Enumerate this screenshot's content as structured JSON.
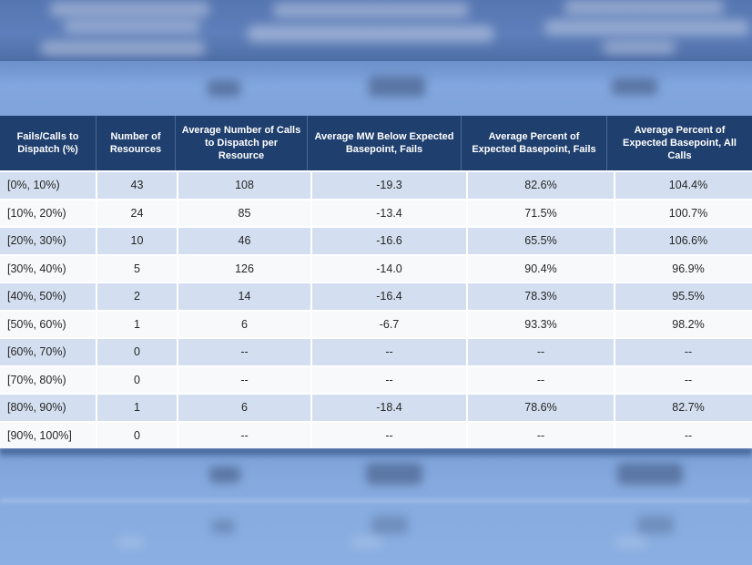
{
  "colors": {
    "header_bg": "#1f3f6e",
    "header_text": "#ffffff",
    "row_alt_bg": "#d3dff0",
    "row_bg": "#f8f9fb",
    "cell_text": "#262626",
    "grid_line": "#ffffff",
    "blur_top_bg": "#5d7eba",
    "blur_mid_bg": "#7fa3db",
    "blur_bottom_bg": "#86aadf"
  },
  "table": {
    "columns": [
      "Fails/Calls to Dispatch (%)",
      "Number of Resources",
      "Average Number of Calls to Dispatch per Resource",
      "Average MW Below Expected Basepoint, Fails",
      "Average Percent of Expected Basepoint, Fails",
      "Average Percent of Expected Basepoint, All Calls"
    ],
    "rows": [
      [
        "[0%, 10%)",
        "43",
        "108",
        "-19.3",
        "82.6%",
        "104.4%"
      ],
      [
        "[10%, 20%)",
        "24",
        "85",
        "-13.4",
        "71.5%",
        "100.7%"
      ],
      [
        "[20%, 30%)",
        "10",
        "46",
        "-16.6",
        "65.5%",
        "106.6%"
      ],
      [
        "[30%, 40%)",
        "5",
        "126",
        "-14.0",
        "90.4%",
        "96.9%"
      ],
      [
        "[40%, 50%)",
        "2",
        "14",
        "-16.4",
        "78.3%",
        "95.5%"
      ],
      [
        "[50%, 60%)",
        "1",
        "6",
        "-6.7",
        "93.3%",
        "98.2%"
      ],
      [
        "[60%, 70%)",
        "0",
        "--",
        "--",
        "--",
        "--"
      ],
      [
        "[70%, 80%)",
        "0",
        "--",
        "--",
        "--",
        "--"
      ],
      [
        "[80%, 90%)",
        "1",
        "6",
        "-18.4",
        "78.6%",
        "82.7%"
      ],
      [
        "[90%, 100%]",
        "0",
        "--",
        "--",
        "--",
        "--"
      ]
    ]
  }
}
